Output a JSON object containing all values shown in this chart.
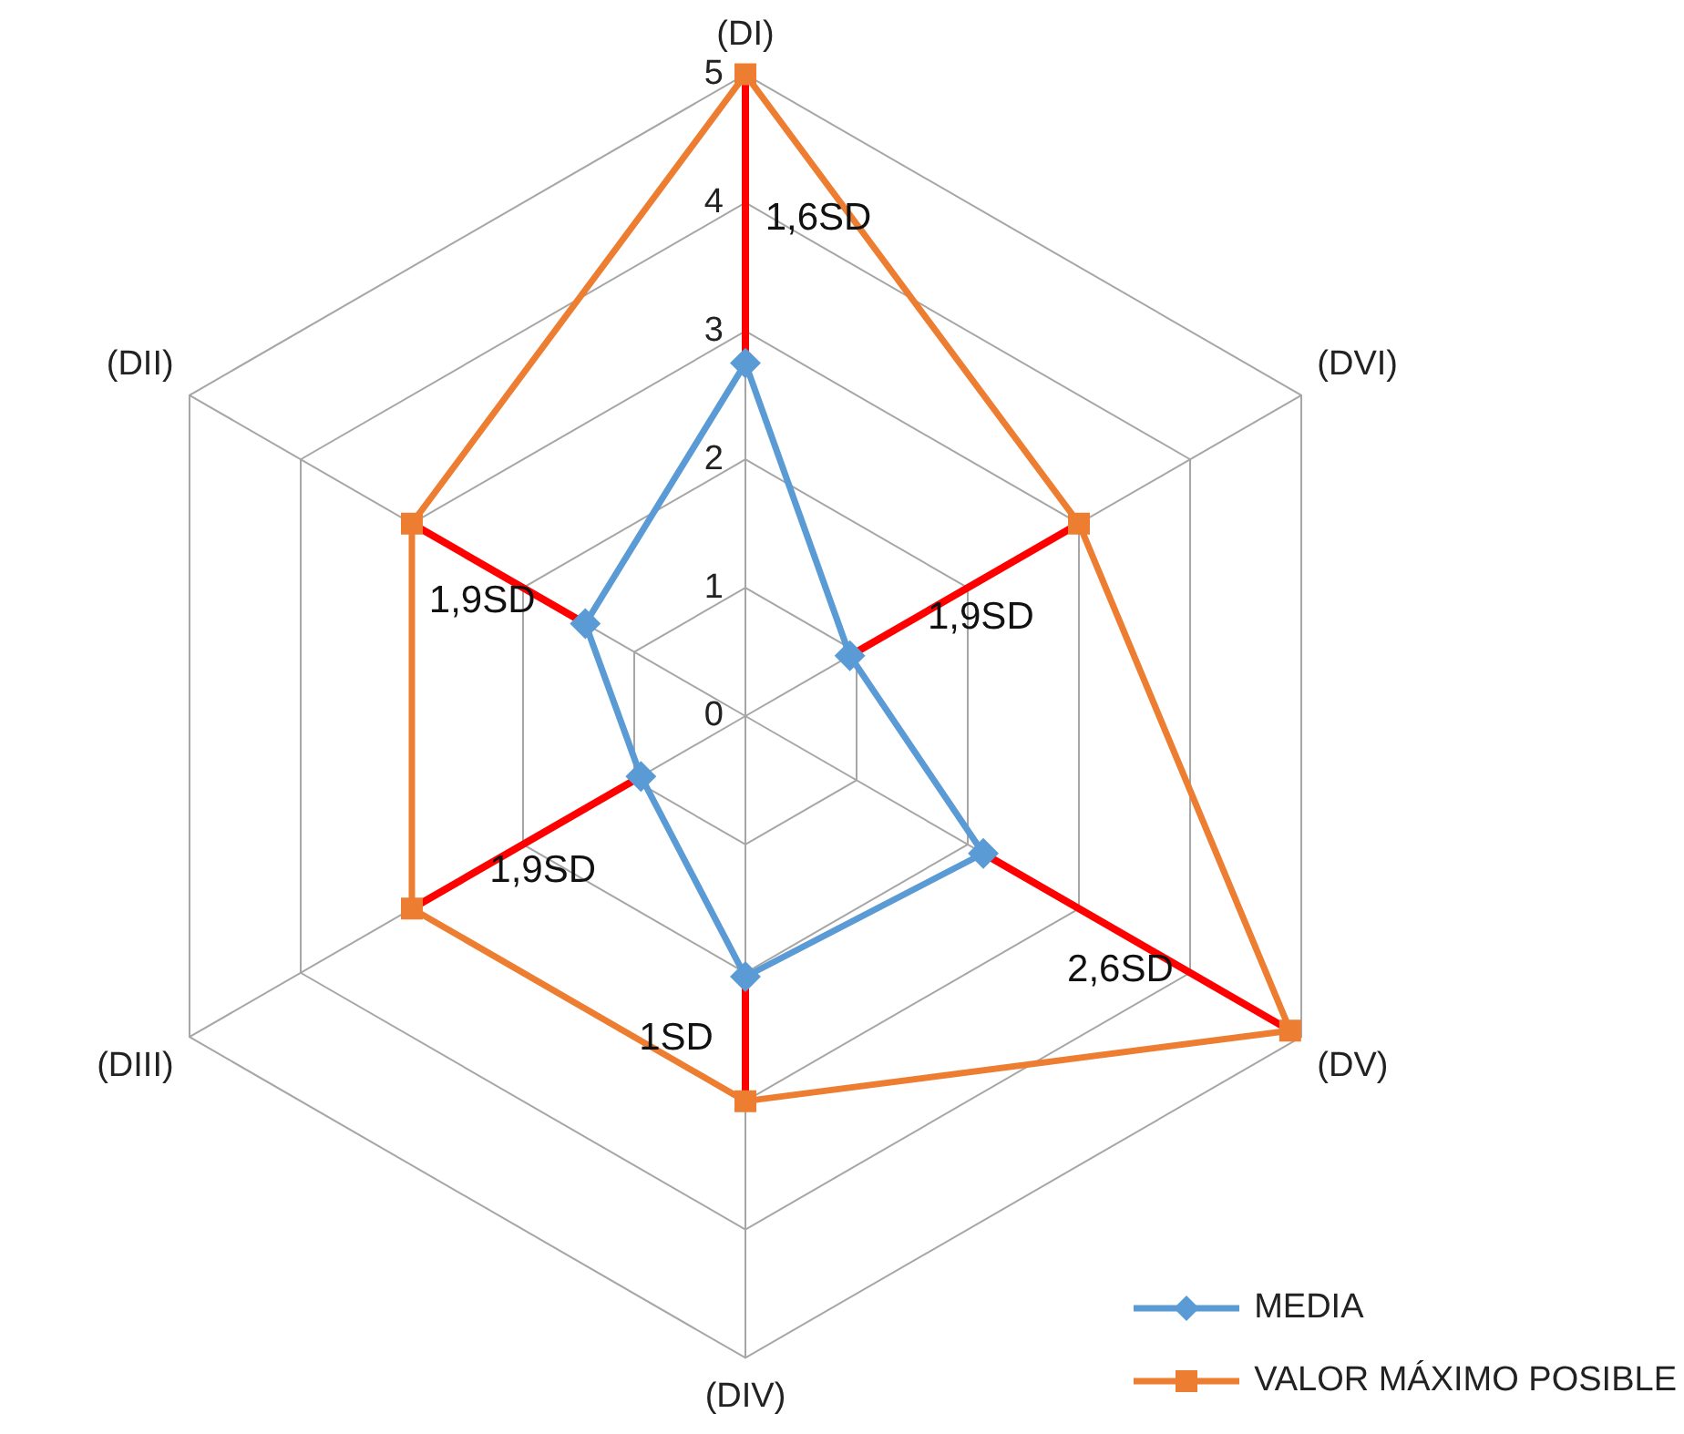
{
  "chart_data": {
    "type": "radar",
    "categories": [
      "(DI)",
      "(DVI)",
      "(DV)",
      "(DIV)",
      "(DIII)",
      "(DII)"
    ],
    "series": [
      {
        "name": "MEDIA",
        "color": "#5b9bd5",
        "marker": "diamond",
        "values": [
          2.75,
          0.94,
          2.14,
          2.03,
          0.94,
          1.44
        ]
      },
      {
        "name": "VALOR MÁXIMO POSIBLE",
        "color": "#ed7d31",
        "marker": "square",
        "values": [
          5,
          3,
          4.9,
          3,
          3,
          3
        ]
      }
    ],
    "ylim": [
      0,
      5
    ],
    "yticks": [
      0,
      1,
      2,
      3,
      4,
      5
    ],
    "grid": true,
    "legend": "bottom right",
    "annotations": [
      {
        "text": "1,6SD",
        "x": "(DI)"
      },
      {
        "text": "1,9SD",
        "x": "(DVI)"
      },
      {
        "text": "2,6SD",
        "x": "(DV)"
      },
      {
        "text": "1SD",
        "x": "(DIV)"
      },
      {
        "text": "1,9SD",
        "x": "(DIII)"
      },
      {
        "text": "1,9SD",
        "x": "(DII)"
      }
    ]
  }
}
